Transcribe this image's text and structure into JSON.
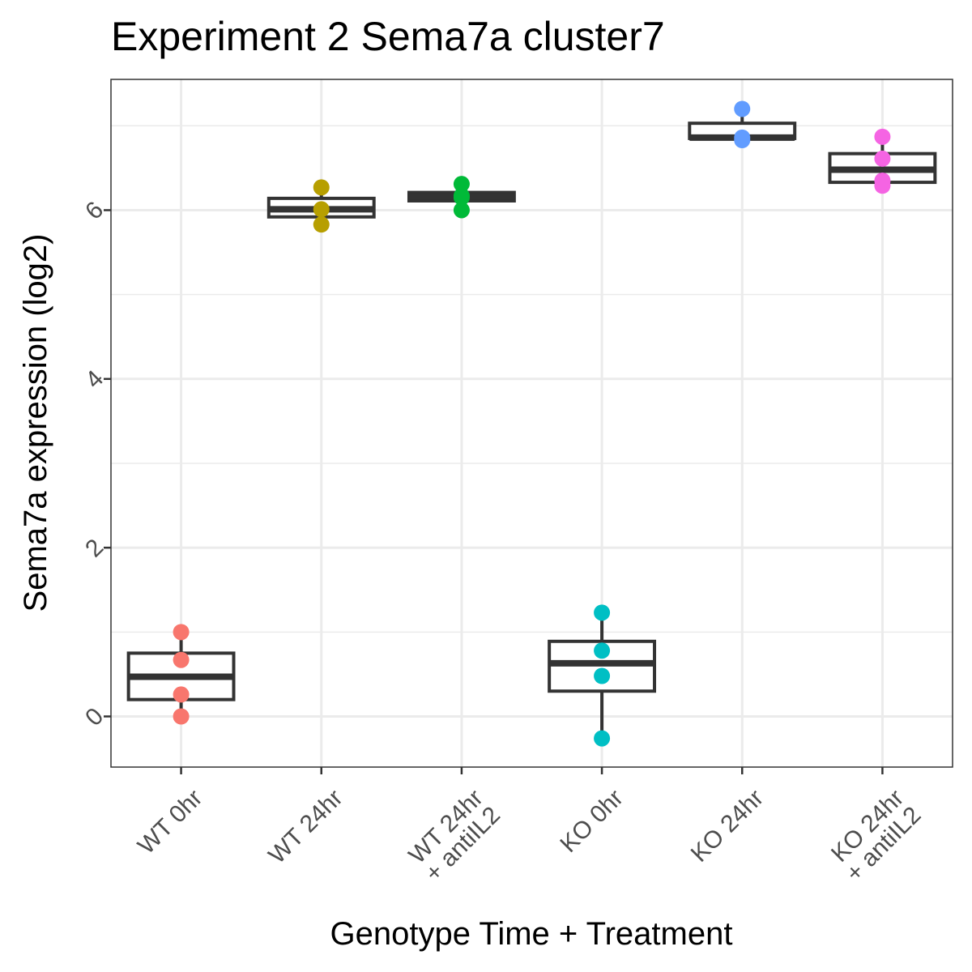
{
  "chart_data": {
    "type": "box",
    "title": "Experiment 2 Sema7a cluster7",
    "xlabel": "Genotype Time + Treatment",
    "ylabel": "Sema7a expression (log2)",
    "ylim": [
      -0.6,
      7.55
    ],
    "y_ticks": [
      0,
      2,
      4,
      6
    ],
    "y_tick_labels": [
      "0",
      "2",
      "4",
      "6"
    ],
    "grid": true,
    "legend": "none",
    "categories": [
      [
        "WT 0hr"
      ],
      [
        "WT 24hr"
      ],
      [
        "WT 24hr",
        "+ antiIL2"
      ],
      [
        "KO 0hr"
      ],
      [
        "KO 24hr"
      ],
      [
        "KO 24hr",
        "+ antiIL2"
      ]
    ],
    "series": [
      {
        "group": "WT 0hr",
        "color": "#F8766D",
        "points": [
          1.0,
          0.67,
          0.26,
          0.0
        ],
        "box": {
          "min": 0.0,
          "q1": 0.2,
          "median": 0.47,
          "q3": 0.75,
          "max": 1.0
        }
      },
      {
        "group": "WT 24hr",
        "color": "#B79F00",
        "points": [
          6.27,
          6.01,
          5.83
        ],
        "box": {
          "min": 5.83,
          "q1": 5.92,
          "median": 6.01,
          "q3": 6.14,
          "max": 6.27
        }
      },
      {
        "group": "WT 24hr + antiIL2",
        "color": "#00BA38",
        "points": [
          6.31,
          6.17,
          6.15,
          6.0
        ],
        "box": {
          "min": 6.0,
          "q1": 6.11,
          "median": 6.16,
          "q3": 6.21,
          "max": 6.31
        }
      },
      {
        "group": "KO 0hr",
        "color": "#00BFC4",
        "points": [
          1.23,
          0.78,
          0.48,
          -0.26
        ],
        "box": {
          "min": -0.26,
          "q1": 0.3,
          "median": 0.63,
          "q3": 0.89,
          "max": 1.23
        }
      },
      {
        "group": "KO 24hr",
        "color": "#619CFF",
        "points": [
          7.2,
          6.86,
          6.83
        ],
        "box": {
          "min": 6.83,
          "q1": 6.85,
          "median": 6.86,
          "q3": 7.03,
          "max": 7.2
        }
      },
      {
        "group": "KO 24hr + antiIL2",
        "color": "#F564E3",
        "points": [
          6.87,
          6.61,
          6.35,
          6.29
        ],
        "box": {
          "min": 6.29,
          "q1": 6.33,
          "median": 6.48,
          "q3": 6.67,
          "max": 6.87
        }
      }
    ]
  }
}
